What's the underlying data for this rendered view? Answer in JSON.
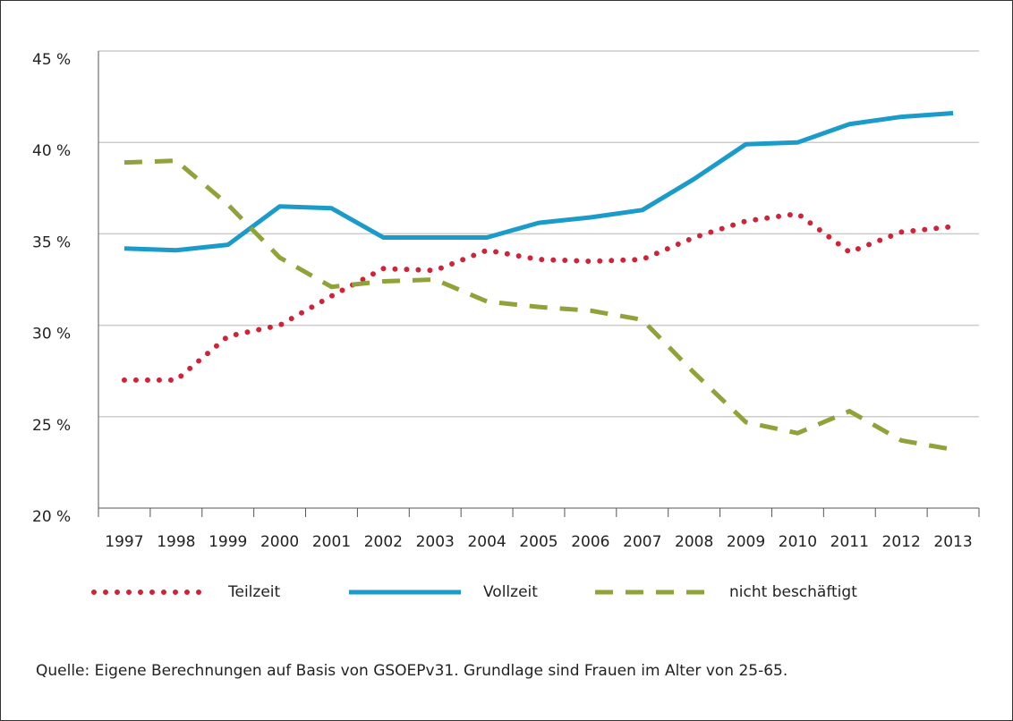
{
  "chart_data": {
    "type": "line",
    "categories": [
      "1997",
      "1998",
      "1999",
      "2000",
      "2001",
      "2002",
      "2003",
      "2004",
      "2005",
      "2006",
      "2007",
      "2008",
      "2009",
      "2010",
      "2011",
      "2012",
      "2013"
    ],
    "series": [
      {
        "name": "Teilzeit",
        "color": "#d0233a",
        "line_style": "dotted",
        "values": [
          27.0,
          27.0,
          29.4,
          30.0,
          31.6,
          33.1,
          33.0,
          34.1,
          33.6,
          33.5,
          33.6,
          34.8,
          35.7,
          36.1,
          34.0,
          35.1,
          35.4
        ]
      },
      {
        "name": "Vollzeit",
        "color": "#1a9bc9",
        "line_style": "solid",
        "values": [
          34.2,
          34.1,
          34.4,
          36.5,
          36.4,
          34.8,
          34.8,
          34.8,
          35.6,
          35.9,
          36.3,
          38.0,
          39.9,
          40.0,
          41.0,
          41.4,
          41.6
        ]
      },
      {
        "name": "nicht beschäftigt",
        "color": "#8fa33a",
        "line_style": "dashed",
        "values": [
          38.9,
          39.0,
          36.6,
          33.7,
          32.1,
          32.4,
          32.5,
          31.3,
          31.0,
          30.8,
          30.3,
          27.4,
          24.7,
          24.1,
          25.3,
          23.7,
          23.2
        ]
      }
    ],
    "ylim": [
      20,
      45
    ],
    "yticks": [
      {
        "value": 20,
        "label": "20 %"
      },
      {
        "value": 25,
        "label": "25 %"
      },
      {
        "value": 30,
        "label": "30 %"
      },
      {
        "value": 35,
        "label": "35 %"
      },
      {
        "value": 40,
        "label": "40 %"
      },
      {
        "value": 45,
        "label": "45 %"
      }
    ],
    "grid": true,
    "legend": "bottom",
    "source": "Quelle: Eigene Berechnungen auf Basis von GSOEPv31. Grundlage sind Frauen im Alter von 25-65."
  }
}
